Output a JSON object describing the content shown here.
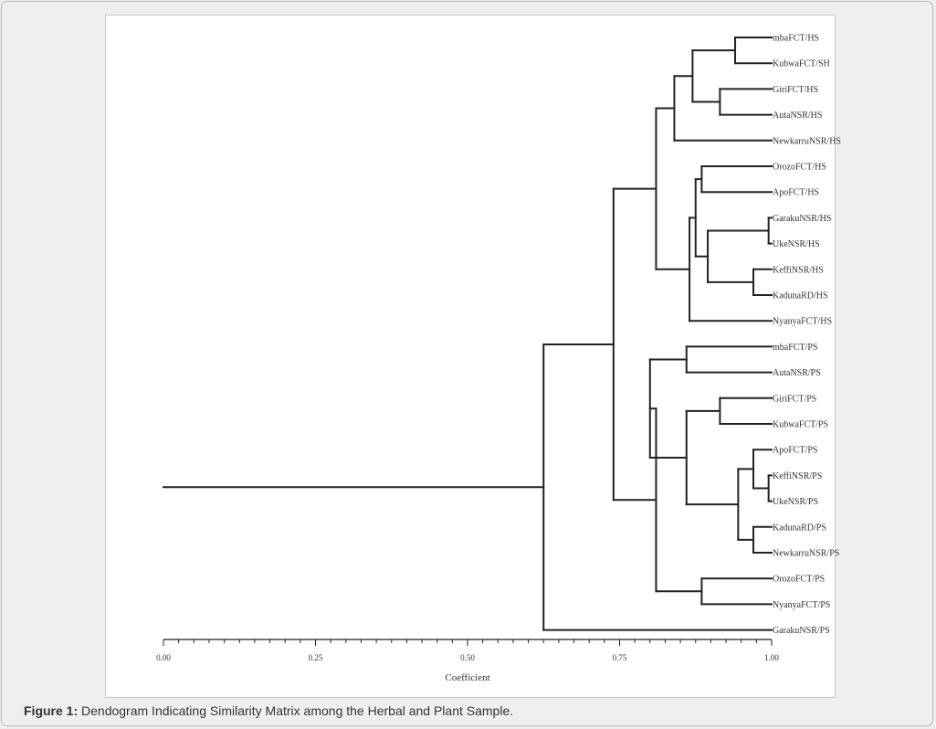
{
  "figure": {
    "label": "Figure 1:",
    "caption": " Dendogram Indicating Similarity Matrix among the Herbal and Plant Sample."
  },
  "chart_data": {
    "type": "dendrogram",
    "xlabel": "Coefficient",
    "xlim": [
      0.0,
      1.0
    ],
    "xticks": [
      "0.00",
      "0.25",
      "0.50",
      "0.75",
      "1.00"
    ],
    "leaves": [
      "mbaFCT/HS",
      "KubwaFCT/SH",
      "GiriFCT/HS",
      "AutaNSR/HS",
      "NewkarruNSR/HS",
      "OrozoFCT/HS",
      "ApoFCT/HS",
      "GarakuNSR/HS",
      "UkeNSR/HS",
      "KeffiNSR/HS",
      "KadunaRD/HS",
      "NyanyaFCT/HS",
      "mbaFCT/PS",
      "AutaNSR/PS",
      "GiriFCT/PS",
      "KubwaFCT/PS",
      "ApoFCT/PS",
      "KeffiNSR/PS",
      "UkeNSR/PS",
      "KadunaRD/PS",
      "NewkarruNSR/PS",
      "OrozoFCT/PS",
      "NyanyaFCT/PS",
      "GarakuNSR/PS"
    ],
    "merges": [
      {
        "id": "A",
        "children": [
          "mbaFCT/HS",
          "KubwaFCT/SH"
        ],
        "coefficient": 0.94
      },
      {
        "id": "B",
        "children": [
          "GiriFCT/HS",
          "AutaNSR/HS"
        ],
        "coefficient": 0.915
      },
      {
        "id": "C",
        "children": [
          "A",
          "B"
        ],
        "coefficient": 0.87
      },
      {
        "id": "D",
        "children": [
          "C",
          "NewkarruNSR/HS"
        ],
        "coefficient": 0.84
      },
      {
        "id": "E",
        "children": [
          "OrozoFCT/HS",
          "ApoFCT/HS"
        ],
        "coefficient": 0.885
      },
      {
        "id": "F",
        "children": [
          "GarakuNSR/HS",
          "UkeNSR/HS"
        ],
        "coefficient": 0.995
      },
      {
        "id": "G",
        "children": [
          "KeffiNSR/HS",
          "KadunaRD/HS"
        ],
        "coefficient": 0.97
      },
      {
        "id": "H",
        "children": [
          "F",
          "G"
        ],
        "coefficient": 0.895
      },
      {
        "id": "I",
        "children": [
          "E",
          "H"
        ],
        "coefficient": 0.875
      },
      {
        "id": "J",
        "children": [
          "I",
          "NyanyaFCT/HS"
        ],
        "coefficient": 0.865
      },
      {
        "id": "K",
        "children": [
          "D",
          "J"
        ],
        "coefficient": 0.81
      },
      {
        "id": "L",
        "children": [
          "mbaFCT/PS",
          "AutaNSR/PS"
        ],
        "coefficient": 0.86
      },
      {
        "id": "M",
        "children": [
          "GiriFCT/PS",
          "KubwaFCT/PS"
        ],
        "coefficient": 0.915
      },
      {
        "id": "N",
        "children": [
          "KeffiNSR/PS",
          "UkeNSR/PS"
        ],
        "coefficient": 0.995
      },
      {
        "id": "O",
        "children": [
          "ApoFCT/PS",
          "N"
        ],
        "coefficient": 0.97
      },
      {
        "id": "P",
        "children": [
          "KadunaRD/PS",
          "NewkarruNSR/PS"
        ],
        "coefficient": 0.97
      },
      {
        "id": "Q",
        "children": [
          "O",
          "P"
        ],
        "coefficient": 0.945
      },
      {
        "id": "R",
        "children": [
          "M",
          "Q"
        ],
        "coefficient": 0.86
      },
      {
        "id": "S",
        "children": [
          "L",
          "R"
        ],
        "coefficient": 0.8
      },
      {
        "id": "T",
        "children": [
          "OrozoFCT/PS",
          "NyanyaFCT/PS"
        ],
        "coefficient": 0.885
      },
      {
        "id": "U",
        "children": [
          "S",
          "T"
        ],
        "coefficient": 0.81
      },
      {
        "id": "V",
        "children": [
          "K",
          "U"
        ],
        "coefficient": 0.74
      },
      {
        "id": "W",
        "children": [
          "V",
          "GarakuNSR/PS"
        ],
        "coefficient": 0.625
      },
      {
        "id": "Root",
        "children": [
          "W"
        ],
        "coefficient": 0.0
      }
    ]
  }
}
